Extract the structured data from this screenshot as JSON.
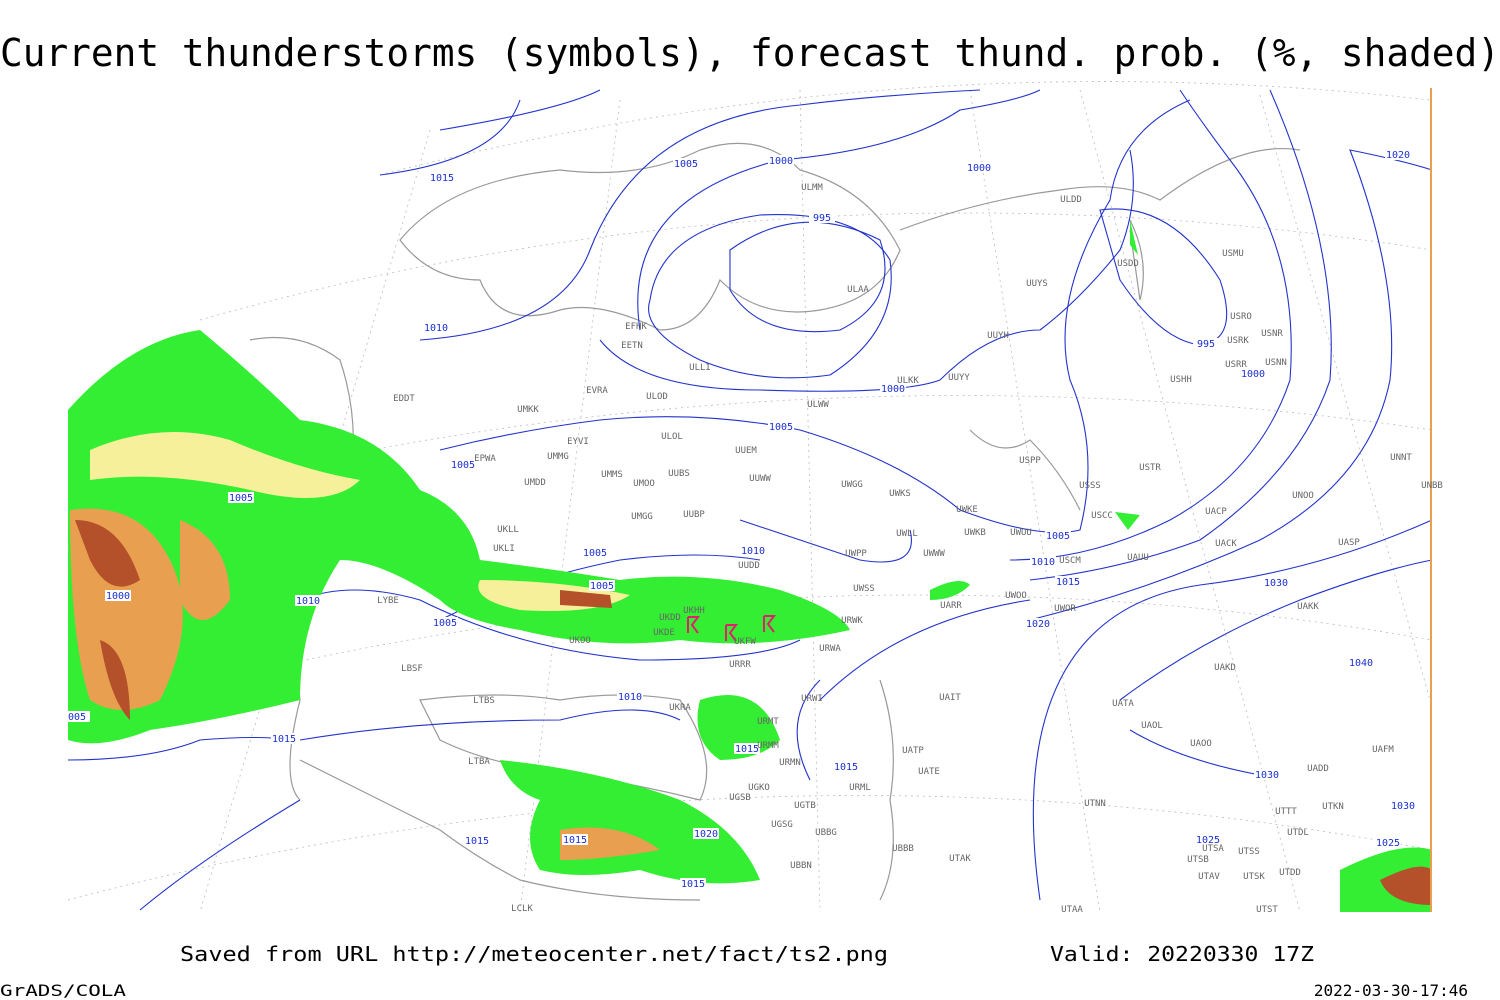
{
  "title": "Current thunderstorms (symbols), forecast thund. prob. (%, shaded)",
  "footer": {
    "source": "Saved from URL http://meteocenter.net/fact/ts2.png",
    "valid": "Valid: 20220330 17Z"
  },
  "software": "GrADS/COLA",
  "timestamp": "2022-03-30-17:46",
  "isobar_labels": [
    "1015",
    "1005",
    "1000",
    "995",
    "1000",
    "1020",
    "1010",
    "995",
    "1000",
    "1000",
    "1005",
    "1005",
    "1005",
    "1005",
    "1010",
    "1005",
    "1005",
    "1010",
    "1015",
    "1030",
    "1020",
    "1005",
    "1000",
    "1010",
    "1010",
    "1015",
    "1015",
    "1015",
    "1030",
    "1020",
    "1015",
    "1015",
    "1015",
    "1025",
    "1025",
    "1030",
    "1040",
    "005"
  ],
  "stations": [
    "ULMM",
    "ULDD",
    "USDD",
    "USMU",
    "ULAA",
    "UUYS",
    "USRO",
    "USRK",
    "USNR",
    "UUYH",
    "EFHK",
    "EETN",
    "ULLI",
    "USRR",
    "USNN",
    "USHH",
    "ULKK",
    "UUYY",
    "EVRA",
    "ULOD",
    "EDDT",
    "UMKK",
    "ULWW",
    "ULOL",
    "UUEM",
    "EYVI",
    "UMMG",
    "EPWA",
    "UMMS",
    "UUBS",
    "UUWW",
    "UMOO",
    "UMDD",
    "UWGG",
    "UWKS",
    "UUBP",
    "UMGG",
    "UWKE",
    "USTR",
    "USPP",
    "USSS",
    "UNNT",
    "UNBB",
    "UNOO",
    "UACP",
    "USCC",
    "UKLL",
    "UKLI",
    "UWLL",
    "UWKB",
    "UWUU",
    "UACK",
    "UASP",
    "UUDD",
    "UWWW",
    "UWPP",
    "USCM",
    "UAUU",
    "UWSS",
    "UARR",
    "UWOO",
    "UWOR",
    "UAKK",
    "UKDD",
    "UKHH",
    "UKDE",
    "URWK",
    "URWA",
    "UKOO",
    "URRR",
    "LYBE",
    "LBSF",
    "UAKD",
    "UKFW",
    "LTBS",
    "UAIT",
    "URWI",
    "UKRA",
    "URMT",
    "UATA",
    "UAOL",
    "UAOO",
    "UAFM",
    "URMM",
    "URMN",
    "UATP",
    "UATE",
    "LTBA",
    "UGKO",
    "URML",
    "UADD",
    "UTNN",
    "UGSB",
    "UGTB",
    "UTTT",
    "UTKN",
    "UGSG",
    "UBBG",
    "UTDL",
    "UBBB",
    "UTSA",
    "UTSS",
    "UBBN",
    "UTAK",
    "UTSB",
    "UTAV",
    "UTSK",
    "UTDD",
    "LCLK",
    "UTAA",
    "UTST"
  ]
}
